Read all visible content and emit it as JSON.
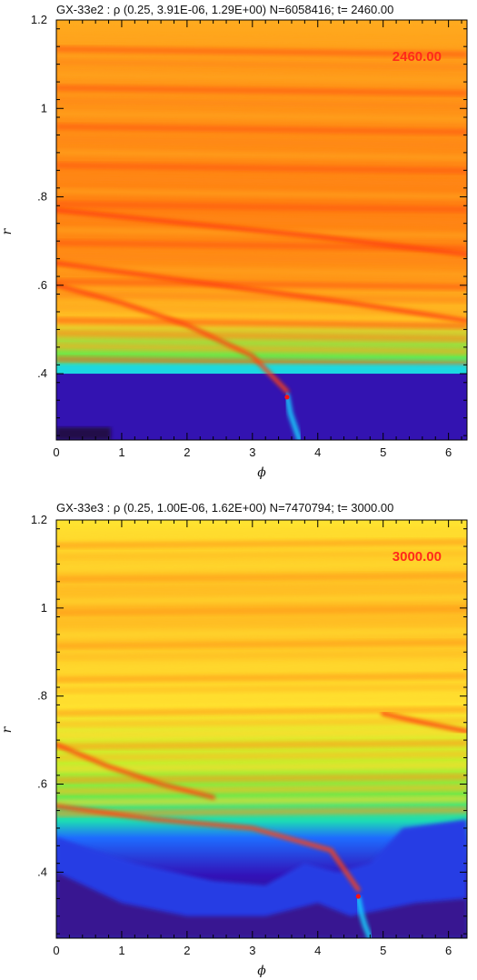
{
  "colors": {
    "cmap": [
      "#000000",
      "#3a1a7a",
      "#3010c8",
      "#1e6cff",
      "#19d6ff",
      "#21e06a",
      "#b6f02a",
      "#ffe430",
      "#ffb020",
      "#ff7b10",
      "#ff2a0a"
    ],
    "marker": "#ff1010",
    "stamp": "#ff2a1a"
  },
  "chart_data": [
    {
      "type": "heatmap",
      "title": "GX-33e2 : ρ (0.25,  3.91E-06,  1.29E+00) N=6058416; t= 2460.00",
      "stamp": "2460.00",
      "xlabel": "ϕ",
      "ylabel": "r",
      "xlim": [
        0,
        6.2832
      ],
      "ylim": [
        0.25,
        1.2
      ],
      "xticks": [
        0,
        1,
        2,
        3,
        4,
        5,
        6
      ],
      "xtick_labels": [
        "0",
        "1",
        "2",
        "3",
        "4",
        "5",
        "6"
      ],
      "yticks": [
        0.4,
        0.6,
        0.8,
        1.0,
        1.2
      ],
      "ytick_labels": [
        ".4",
        ".6",
        ".8",
        "1",
        "1.2"
      ],
      "grid": false,
      "planet": {
        "phi": 3.53,
        "r": 0.347
      },
      "gap_edge_r": 0.4,
      "background_level": 0.86,
      "spiral_arms": [
        {
          "phi": [
            0.0,
            1.0,
            2.0,
            3.0,
            3.53
          ],
          "r": [
            0.6,
            0.56,
            0.51,
            0.44,
            0.36
          ]
        },
        {
          "phi": [
            0.0,
            1.5,
            3.0,
            4.5,
            6.28
          ],
          "r": [
            0.65,
            0.62,
            0.59,
            0.56,
            0.52
          ]
        },
        {
          "phi": [
            0.0,
            2.0,
            4.0,
            6.28
          ],
          "r": [
            0.77,
            0.74,
            0.71,
            0.67
          ]
        },
        {
          "phi": [
            3.53,
            3.58,
            3.65,
            3.72
          ],
          "r": [
            0.35,
            0.31,
            0.28,
            0.25
          ]
        }
      ]
    },
    {
      "type": "heatmap",
      "title": "GX-33e3 : ρ (0.25,  1.00E-06,  1.62E+00) N=7470794; t= 3000.00",
      "stamp": "3000.00",
      "xlabel": "ϕ",
      "ylabel": "r",
      "xlim": [
        0,
        6.2832
      ],
      "ylim": [
        0.25,
        1.2
      ],
      "xticks": [
        0,
        1,
        2,
        3,
        4,
        5,
        6
      ],
      "xtick_labels": [
        "0",
        "1",
        "2",
        "3",
        "4",
        "5",
        "6"
      ],
      "yticks": [
        0.4,
        0.6,
        0.8,
        1.0,
        1.2
      ],
      "ytick_labels": [
        ".4",
        ".6",
        ".8",
        "1",
        "1.2"
      ],
      "grid": false,
      "planet": {
        "phi": 4.62,
        "r": 0.345
      },
      "gap_edge_r": 0.5,
      "background_level": 0.78,
      "spiral_arms": [
        {
          "phi": [
            0.0,
            0.8,
            1.6,
            2.4
          ],
          "r": [
            0.69,
            0.64,
            0.6,
            0.57
          ]
        },
        {
          "phi": [
            0.0,
            1.5,
            3.0,
            4.2,
            4.62
          ],
          "r": [
            0.55,
            0.52,
            0.5,
            0.45,
            0.36
          ]
        },
        {
          "phi": [
            5.0,
            5.6,
            6.28
          ],
          "r": [
            0.76,
            0.74,
            0.72
          ]
        },
        {
          "phi": [
            4.62,
            4.66,
            4.72,
            4.8
          ],
          "r": [
            0.34,
            0.31,
            0.28,
            0.25
          ]
        }
      ]
    }
  ]
}
